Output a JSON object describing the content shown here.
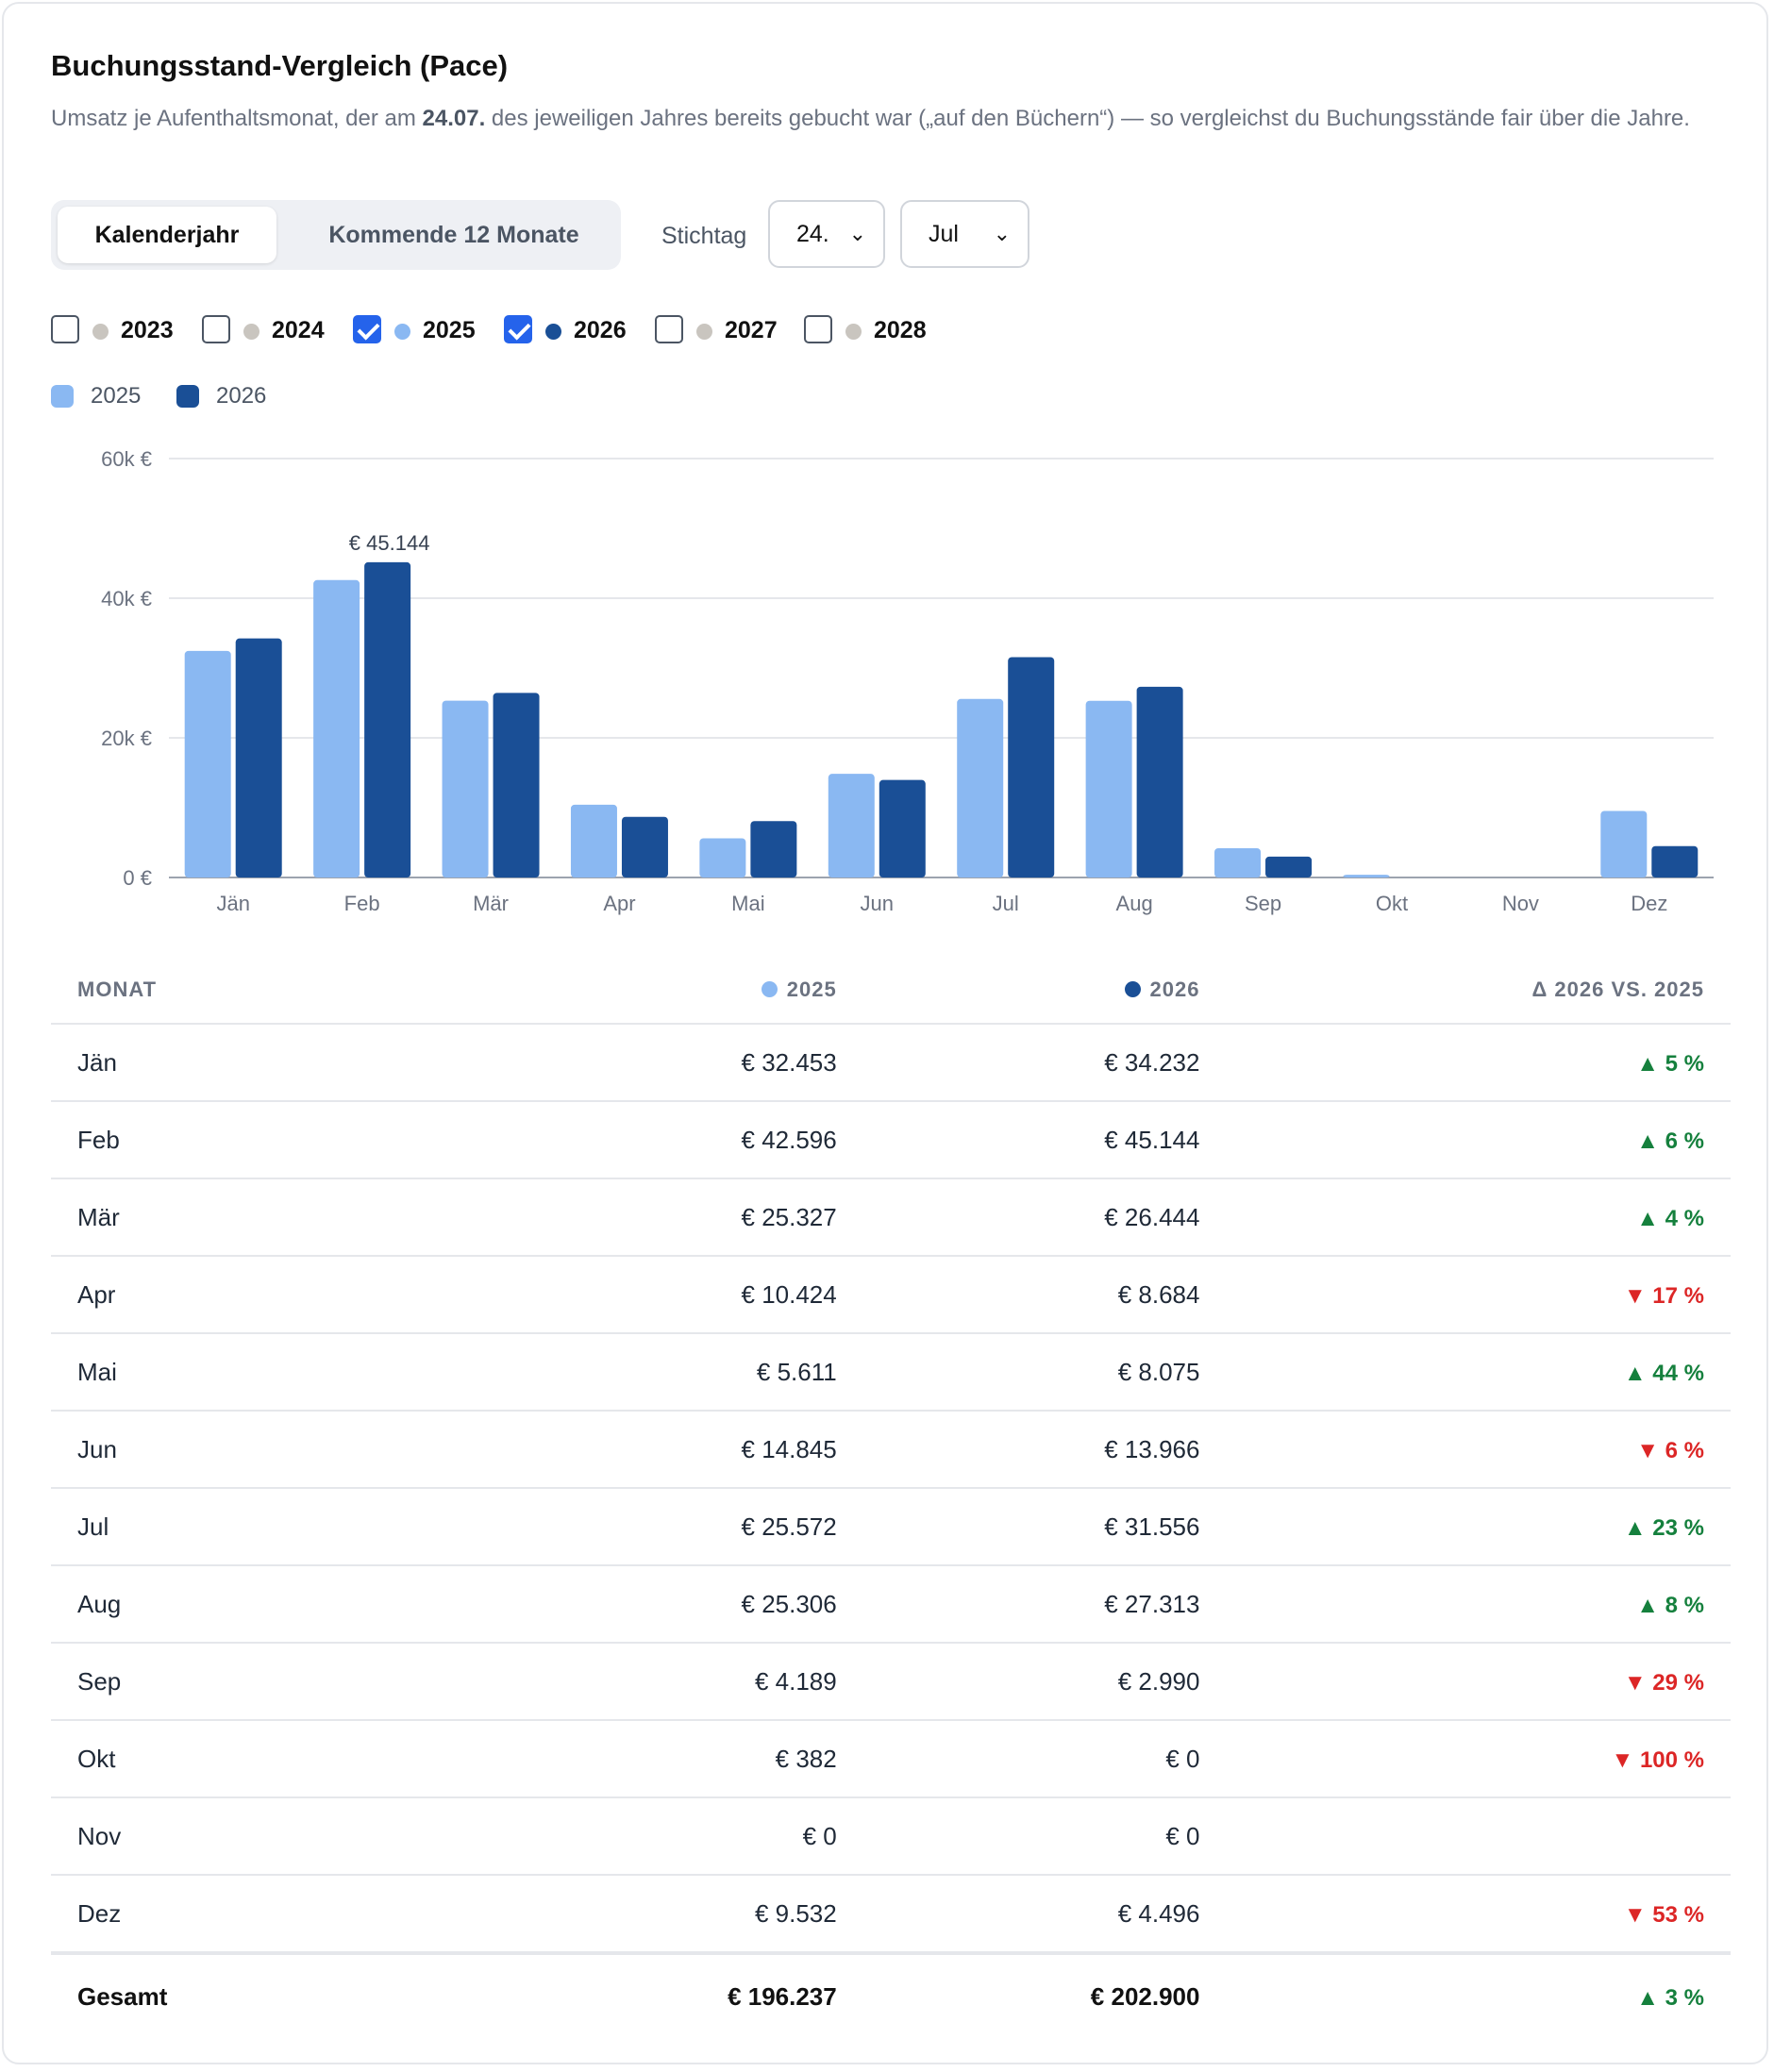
{
  "header": {
    "title": "Buchungsstand-Vergleich (Pace)",
    "subtitle_part1": "Umsatz je Aufenthaltsmonat, der am ",
    "subtitle_date": "24.07.",
    "subtitle_part2": " des jeweiligen Jahres bereits gebucht war („auf den Büchern“) — so vergleichst du Buchungsstände fair über die Jahre."
  },
  "controls": {
    "tabs": [
      {
        "label": "Kalenderjahr",
        "active": true
      },
      {
        "label": "Kommende 12 Monate",
        "active": false
      }
    ],
    "stichtag_label": "Stichtag",
    "day_value": "24.",
    "month_value": "Jul"
  },
  "year_filters": [
    {
      "label": "2023",
      "checked": false,
      "color": "#c9c5bf"
    },
    {
      "label": "2024",
      "checked": false,
      "color": "#c9c5bf"
    },
    {
      "label": "2025",
      "checked": true,
      "color": "#8ab8f2"
    },
    {
      "label": "2026",
      "checked": true,
      "color": "#1a4f96"
    },
    {
      "label": "2027",
      "checked": false,
      "color": "#c9c5bf"
    },
    {
      "label": "2028",
      "checked": false,
      "color": "#c9c5bf"
    }
  ],
  "colors": {
    "series_2025": "#8ab8f2",
    "series_2026": "#1a4f96",
    "up": "#15803d",
    "down": "#dc2626"
  },
  "chart_data": {
    "type": "bar",
    "categories": [
      "Jän",
      "Feb",
      "Mär",
      "Apr",
      "Mai",
      "Jun",
      "Jul",
      "Aug",
      "Sep",
      "Okt",
      "Nov",
      "Dez"
    ],
    "series": [
      {
        "name": "2025",
        "color": "#8ab8f2",
        "values": [
          32453,
          42596,
          25327,
          10424,
          5611,
          14845,
          25572,
          25306,
          4189,
          382,
          0,
          9532
        ]
      },
      {
        "name": "2026",
        "color": "#1a4f96",
        "values": [
          34232,
          45144,
          26444,
          8684,
          8075,
          13966,
          31556,
          27313,
          2990,
          0,
          0,
          4496
        ]
      }
    ],
    "yticks": [
      "0 €",
      "20k €",
      "40k €",
      "60k €"
    ],
    "ytick_values": [
      0,
      20000,
      40000,
      60000
    ],
    "ylim": [
      0,
      60000
    ],
    "annotation": {
      "text": "€ 45.144",
      "category": "Feb",
      "series": "2026"
    },
    "legend_position": "top-left",
    "grid": true
  },
  "table": {
    "headers": [
      "MONAT",
      "2025",
      "2026",
      "Δ 2026 VS. 2025"
    ],
    "rows": [
      {
        "month": "Jän",
        "v2025": "€ 32.453",
        "v2026": "€ 34.232",
        "delta": "▲ 5 %",
        "dir": "up"
      },
      {
        "month": "Feb",
        "v2025": "€ 42.596",
        "v2026": "€ 45.144",
        "delta": "▲ 6 %",
        "dir": "up"
      },
      {
        "month": "Mär",
        "v2025": "€ 25.327",
        "v2026": "€ 26.444",
        "delta": "▲ 4 %",
        "dir": "up"
      },
      {
        "month": "Apr",
        "v2025": "€ 10.424",
        "v2026": "€ 8.684",
        "delta": "▼ 17 %",
        "dir": "down"
      },
      {
        "month": "Mai",
        "v2025": "€ 5.611",
        "v2026": "€ 8.075",
        "delta": "▲ 44 %",
        "dir": "up"
      },
      {
        "month": "Jun",
        "v2025": "€ 14.845",
        "v2026": "€ 13.966",
        "delta": "▼ 6 %",
        "dir": "down"
      },
      {
        "month": "Jul",
        "v2025": "€ 25.572",
        "v2026": "€ 31.556",
        "delta": "▲ 23 %",
        "dir": "up"
      },
      {
        "month": "Aug",
        "v2025": "€ 25.306",
        "v2026": "€ 27.313",
        "delta": "▲ 8 %",
        "dir": "up"
      },
      {
        "month": "Sep",
        "v2025": "€ 4.189",
        "v2026": "€ 2.990",
        "delta": "▼ 29 %",
        "dir": "down"
      },
      {
        "month": "Okt",
        "v2025": "€ 382",
        "v2026": "€ 0",
        "delta": "▼ 100 %",
        "dir": "down"
      },
      {
        "month": "Nov",
        "v2025": "€ 0",
        "v2026": "€ 0",
        "delta": "",
        "dir": ""
      },
      {
        "month": "Dez",
        "v2025": "€ 9.532",
        "v2026": "€ 4.496",
        "delta": "▼ 53 %",
        "dir": "down"
      }
    ],
    "total": {
      "label": "Gesamt",
      "v2025": "€ 196.237",
      "v2026": "€ 202.900",
      "delta": "▲ 3 %",
      "dir": "up"
    }
  }
}
